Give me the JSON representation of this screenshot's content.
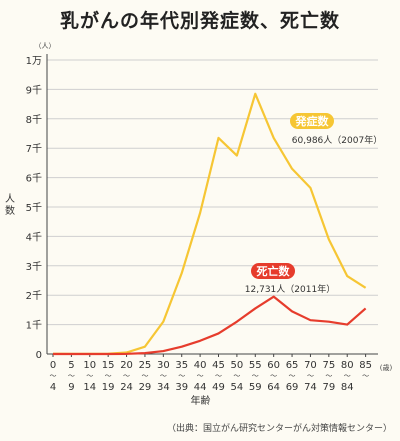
{
  "title": "乳がんの年代別発症数、死亡数",
  "source": "（出典：国立がん研究センターがん対策情報センター）",
  "chart_data": {
    "type": "line",
    "y_unit_top": "（人）",
    "y_unit_bottom": "(人)",
    "ylabel": "人数",
    "xlabel": "年齢",
    "x_unit": "(歳)",
    "ylim": [
      0,
      10000
    ],
    "y_ticks": [
      {
        "value": 0,
        "label": "0"
      },
      {
        "value": 1000,
        "label": "1千"
      },
      {
        "value": 2000,
        "label": "2千"
      },
      {
        "value": 3000,
        "label": "3千"
      },
      {
        "value": 4000,
        "label": "4千"
      },
      {
        "value": 5000,
        "label": "5千"
      },
      {
        "value": 6000,
        "label": "6千"
      },
      {
        "value": 7000,
        "label": "7千"
      },
      {
        "value": 8000,
        "label": "8千"
      },
      {
        "value": 9000,
        "label": "9千"
      },
      {
        "value": 10000,
        "label": "1万"
      }
    ],
    "categories": [
      {
        "start": "0",
        "end": "4"
      },
      {
        "start": "5",
        "end": "9"
      },
      {
        "start": "10",
        "end": "14"
      },
      {
        "start": "15",
        "end": "19"
      },
      {
        "start": "20",
        "end": "24"
      },
      {
        "start": "25",
        "end": "29"
      },
      {
        "start": "30",
        "end": "34"
      },
      {
        "start": "35",
        "end": "39"
      },
      {
        "start": "40",
        "end": "44"
      },
      {
        "start": "45",
        "end": "49"
      },
      {
        "start": "50",
        "end": "54"
      },
      {
        "start": "55",
        "end": "59"
      },
      {
        "start": "60",
        "end": "64"
      },
      {
        "start": "65",
        "end": "69"
      },
      {
        "start": "70",
        "end": "74"
      },
      {
        "start": "75",
        "end": "79"
      },
      {
        "start": "80",
        "end": "84"
      },
      {
        "start": "85",
        "end": ""
      }
    ],
    "series": [
      {
        "name": "発症数",
        "note": "60,986人（2007年）",
        "color": "#f6c634",
        "values": [
          10,
          5,
          5,
          10,
          50,
          250,
          1100,
          2750,
          4800,
          7350,
          6750,
          8850,
          7350,
          6300,
          5650,
          3900,
          2650,
          2250
        ]
      },
      {
        "name": "死亡数",
        "note": "12,731人（2011年）",
        "color": "#e63c2c",
        "values": [
          0,
          0,
          0,
          0,
          5,
          30,
          100,
          250,
          450,
          700,
          1100,
          1550,
          1950,
          1450,
          1150,
          1100,
          1000,
          1550
        ]
      }
    ]
  }
}
